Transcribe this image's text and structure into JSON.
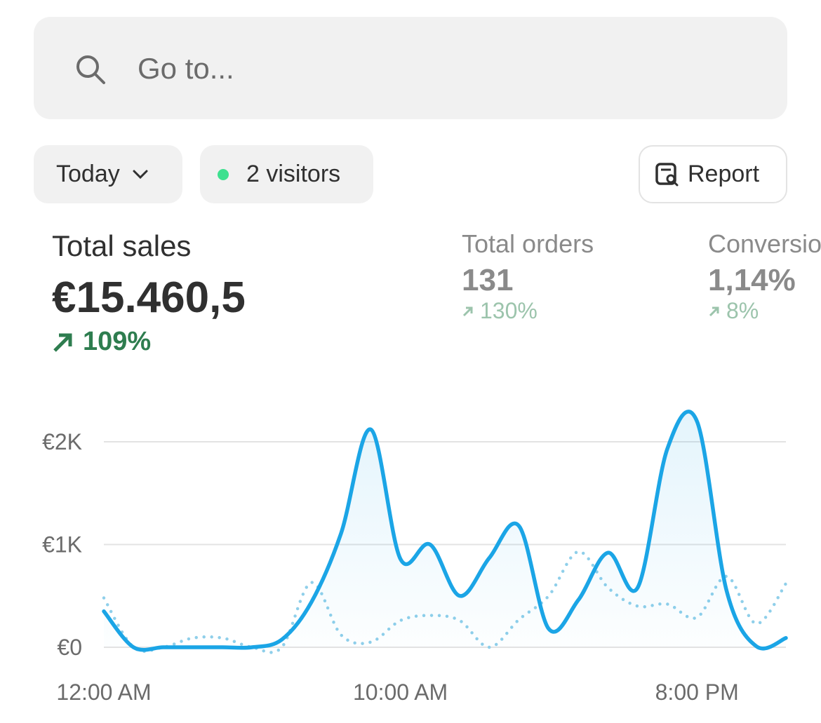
{
  "search": {
    "placeholder": "Go to..."
  },
  "filters": {
    "period": "Today",
    "visitors": "2 visitors",
    "report": "Report"
  },
  "metrics": [
    {
      "label": "Total sales",
      "value": "€15.460,5",
      "change": "109%"
    },
    {
      "label": "Total orders",
      "value": "131",
      "change": "130%"
    },
    {
      "label": "Conversion",
      "value": "1,14%",
      "change": "8%"
    }
  ],
  "chart_data": {
    "type": "line",
    "categories": [
      "12:00 AM",
      null,
      null,
      null,
      null,
      null,
      null,
      null,
      null,
      null,
      "10:00 AM",
      null,
      null,
      null,
      null,
      null,
      null,
      null,
      null,
      null,
      "8:00 PM",
      null,
      null,
      null
    ],
    "series": [
      {
        "color": "#8fcfea",
        "style": "dotted",
        "values": [
          480,
          0,
          0,
          90,
          90,
          0,
          0,
          630,
          120,
          50,
          260,
          310,
          260,
          0,
          270,
          500,
          930,
          580,
          400,
          420,
          290,
          690,
          230,
          620
        ]
      },
      {
        "color": "#1ba5e6",
        "style": "solid",
        "values": [
          350,
          0,
          0,
          0,
          0,
          0,
          75,
          440,
          1110,
          2120,
          860,
          1000,
          500,
          870,
          1180,
          180,
          460,
          920,
          580,
          1930,
          2200,
          550,
          10,
          90
        ]
      }
    ],
    "ylim": [
      0,
      2300
    ],
    "yticks": [
      {
        "value": 0,
        "label": "€0"
      },
      {
        "value": 1000,
        "label": "€1K"
      },
      {
        "value": 2000,
        "label": "€2K"
      }
    ],
    "grid": true
  }
}
